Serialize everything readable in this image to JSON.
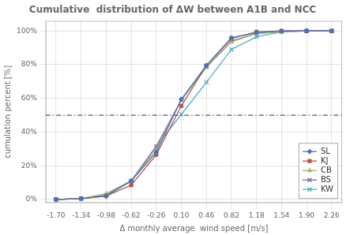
{
  "chart_data": {
    "type": "line",
    "title": "Cumulative  distribution of ΔW between A1B and NCC",
    "xlabel": "Δ monthly average  wind speed [m/s]",
    "ylabel": "cumulation percent [%]",
    "x": [
      -1.7,
      -1.34,
      -0.98,
      -0.62,
      -0.26,
      0.1,
      0.46,
      0.82,
      1.18,
      1.54,
      1.9,
      2.26
    ],
    "series": [
      {
        "name": "SL",
        "color": "#4472C4",
        "marker": "diamond",
        "values": [
          0.0,
          0.005,
          0.02,
          0.11,
          0.28,
          0.595,
          0.795,
          0.96,
          0.99,
          1.0,
          1.0,
          1.0
        ]
      },
      {
        "name": "KJ",
        "color": "#C0504D",
        "marker": "square",
        "values": [
          0.0,
          0.005,
          0.02,
          0.085,
          0.265,
          0.555,
          0.795,
          0.955,
          0.995,
          1.0,
          1.0,
          1.0
        ]
      },
      {
        "name": "CB",
        "color": "#9BBB59",
        "marker": "triangle",
        "values": [
          0.0,
          0.005,
          0.035,
          0.11,
          0.295,
          0.59,
          0.785,
          0.935,
          0.985,
          0.995,
          1.0,
          1.0
        ]
      },
      {
        "name": "BS",
        "color": "#8064A2",
        "marker": "x",
        "values": [
          0.0,
          0.005,
          0.025,
          0.11,
          0.315,
          0.59,
          0.785,
          0.94,
          0.985,
          0.995,
          1.0,
          1.0
        ]
      },
      {
        "name": "KW",
        "color": "#4BACC6",
        "marker": "x",
        "values": [
          0.0,
          0.005,
          0.025,
          0.11,
          0.315,
          0.505,
          0.695,
          0.89,
          0.965,
          0.995,
          1.0,
          1.0
        ]
      }
    ],
    "reference_lines": [
      {
        "y": 0.5,
        "color": "#555555",
        "line_style": "dashdot"
      }
    ],
    "xlim": [
      -1.85,
      2.41
    ],
    "xticks": [
      {
        "value": -1.7,
        "label": "-1.70"
      },
      {
        "value": -1.34,
        "label": "-1.34"
      },
      {
        "value": -0.98,
        "label": "-0.98"
      },
      {
        "value": -0.62,
        "label": "-0.62"
      },
      {
        "value": -0.26,
        "label": "-0.26"
      },
      {
        "value": 0.1,
        "label": "0.10"
      },
      {
        "value": 0.46,
        "label": "0.46"
      },
      {
        "value": 0.82,
        "label": "0.82"
      },
      {
        "value": 1.18,
        "label": "1.18"
      },
      {
        "value": 1.54,
        "label": "1.54"
      },
      {
        "value": 1.9,
        "label": "1.90"
      },
      {
        "value": 2.26,
        "label": "2.26"
      }
    ],
    "ylim": [
      -0.02,
      1.06
    ],
    "yticks": [
      {
        "value": 0.0,
        "label": "0%"
      },
      {
        "value": 0.2,
        "label": "20%"
      },
      {
        "value": 0.4,
        "label": "40%"
      },
      {
        "value": 0.6,
        "label": "60%"
      },
      {
        "value": 0.8,
        "label": "80%"
      },
      {
        "value": 1.0,
        "label": "100%"
      }
    ],
    "grid": true,
    "legend": "lower right"
  }
}
